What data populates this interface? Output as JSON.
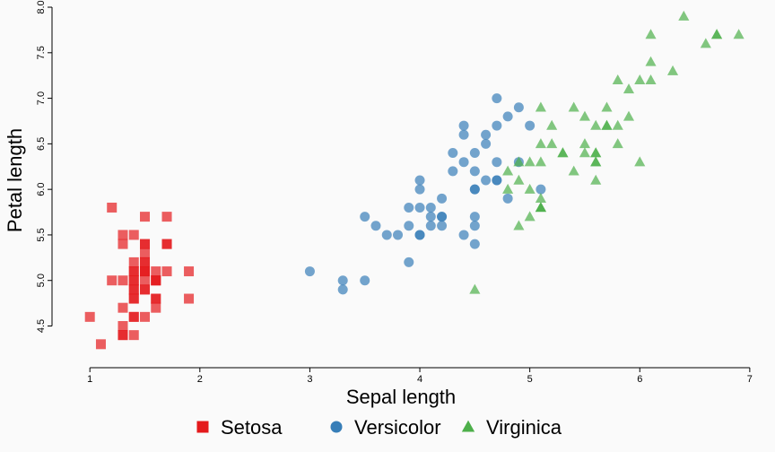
{
  "chart_data": {
    "type": "scatter",
    "xlabel": "Sepal length",
    "ylabel": "Petal length",
    "xlim": [
      0.77,
      7.05
    ],
    "ylim": [
      4.18,
      8.02
    ],
    "x_ticks": [
      1,
      2,
      3,
      4,
      5,
      6,
      7
    ],
    "y_ticks": [
      4.5,
      5.0,
      5.5,
      6.0,
      6.5,
      7.0,
      7.5,
      8.0
    ],
    "x_tick_labels": [
      "1",
      "2",
      "3",
      "4",
      "5",
      "6",
      "7"
    ],
    "y_tick_labels": [
      "4.5",
      "5.0",
      "5.5",
      "6.0",
      "6.5",
      "7.0",
      "7.5",
      "8.0"
    ],
    "grid": false,
    "legend_position": "bottom",
    "series": [
      {
        "name": "Setosa",
        "marker": "square",
        "color": "#e41a1c",
        "points": [
          [
            1.4,
            5.1
          ],
          [
            1.4,
            4.9
          ],
          [
            1.3,
            4.7
          ],
          [
            1.5,
            4.6
          ],
          [
            1.4,
            5.0
          ],
          [
            1.7,
            5.4
          ],
          [
            1.4,
            4.6
          ],
          [
            1.5,
            5.0
          ],
          [
            1.4,
            4.4
          ],
          [
            1.5,
            4.9
          ],
          [
            1.5,
            5.4
          ],
          [
            1.6,
            4.8
          ],
          [
            1.4,
            4.8
          ],
          [
            1.1,
            4.3
          ],
          [
            1.2,
            5.8
          ],
          [
            1.5,
            5.7
          ],
          [
            1.3,
            5.4
          ],
          [
            1.4,
            5.1
          ],
          [
            1.7,
            5.7
          ],
          [
            1.5,
            5.1
          ],
          [
            1.7,
            5.4
          ],
          [
            1.5,
            5.1
          ],
          [
            1.0,
            4.6
          ],
          [
            1.7,
            5.1
          ],
          [
            1.9,
            4.8
          ],
          [
            1.6,
            5.0
          ],
          [
            1.6,
            5.0
          ],
          [
            1.5,
            5.2
          ],
          [
            1.4,
            5.2
          ],
          [
            1.6,
            4.7
          ],
          [
            1.6,
            4.8
          ],
          [
            1.5,
            5.4
          ],
          [
            1.5,
            5.2
          ],
          [
            1.4,
            5.5
          ],
          [
            1.5,
            4.9
          ],
          [
            1.2,
            5.0
          ],
          [
            1.3,
            5.5
          ],
          [
            1.4,
            4.9
          ],
          [
            1.3,
            4.4
          ],
          [
            1.5,
            5.1
          ],
          [
            1.3,
            5.0
          ],
          [
            1.3,
            4.5
          ],
          [
            1.3,
            4.4
          ],
          [
            1.6,
            5.0
          ],
          [
            1.9,
            5.1
          ],
          [
            1.4,
            4.8
          ],
          [
            1.6,
            5.1
          ],
          [
            1.4,
            4.6
          ],
          [
            1.5,
            5.3
          ],
          [
            1.4,
            5.0
          ]
        ]
      },
      {
        "name": "Versicolor",
        "marker": "circle",
        "color": "#377eb8",
        "points": [
          [
            4.7,
            7.0
          ],
          [
            4.5,
            6.4
          ],
          [
            4.9,
            6.9
          ],
          [
            4.0,
            5.5
          ],
          [
            4.6,
            6.5
          ],
          [
            4.5,
            5.7
          ],
          [
            4.7,
            6.3
          ],
          [
            3.3,
            4.9
          ],
          [
            4.6,
            6.6
          ],
          [
            3.9,
            5.2
          ],
          [
            3.5,
            5.0
          ],
          [
            4.2,
            5.9
          ],
          [
            4.0,
            6.0
          ],
          [
            4.7,
            6.1
          ],
          [
            3.6,
            5.6
          ],
          [
            4.4,
            6.7
          ],
          [
            4.5,
            5.6
          ],
          [
            4.1,
            5.8
          ],
          [
            4.5,
            6.2
          ],
          [
            3.9,
            5.6
          ],
          [
            4.8,
            5.9
          ],
          [
            4.0,
            6.1
          ],
          [
            4.9,
            6.3
          ],
          [
            4.7,
            6.1
          ],
          [
            4.3,
            6.4
          ],
          [
            4.4,
            6.6
          ],
          [
            4.8,
            6.8
          ],
          [
            5.0,
            6.7
          ],
          [
            4.5,
            6.0
          ],
          [
            3.5,
            5.7
          ],
          [
            3.8,
            5.5
          ],
          [
            3.7,
            5.5
          ],
          [
            3.9,
            5.8
          ],
          [
            5.1,
            6.0
          ],
          [
            4.5,
            5.4
          ],
          [
            4.5,
            6.0
          ],
          [
            4.7,
            6.7
          ],
          [
            4.4,
            6.3
          ],
          [
            4.1,
            5.6
          ],
          [
            4.0,
            5.5
          ],
          [
            4.4,
            5.5
          ],
          [
            4.6,
            6.1
          ],
          [
            4.0,
            5.8
          ],
          [
            3.3,
            5.0
          ],
          [
            4.2,
            5.6
          ],
          [
            4.2,
            5.7
          ],
          [
            4.2,
            5.7
          ],
          [
            4.3,
            6.2
          ],
          [
            3.0,
            5.1
          ],
          [
            4.1,
            5.7
          ]
        ]
      },
      {
        "name": "Virginica",
        "marker": "triangle",
        "color": "#4daf4a",
        "points": [
          [
            6.0,
            6.3
          ],
          [
            5.1,
            5.8
          ],
          [
            5.9,
            7.1
          ],
          [
            5.6,
            6.3
          ],
          [
            5.8,
            6.5
          ],
          [
            6.6,
            7.6
          ],
          [
            4.5,
            4.9
          ],
          [
            6.3,
            7.3
          ],
          [
            5.8,
            6.7
          ],
          [
            6.1,
            7.2
          ],
          [
            5.1,
            6.5
          ],
          [
            5.3,
            6.4
          ],
          [
            5.5,
            6.8
          ],
          [
            5.0,
            5.7
          ],
          [
            5.1,
            5.8
          ],
          [
            5.3,
            6.4
          ],
          [
            5.5,
            6.5
          ],
          [
            6.7,
            7.7
          ],
          [
            6.9,
            7.7
          ],
          [
            5.0,
            6.0
          ],
          [
            5.7,
            6.9
          ],
          [
            4.9,
            5.6
          ],
          [
            6.7,
            7.7
          ],
          [
            4.9,
            6.3
          ],
          [
            5.7,
            6.7
          ],
          [
            6.0,
            7.2
          ],
          [
            4.8,
            6.2
          ],
          [
            4.9,
            6.1
          ],
          [
            5.6,
            6.4
          ],
          [
            5.8,
            7.2
          ],
          [
            6.1,
            7.4
          ],
          [
            6.4,
            7.9
          ],
          [
            5.6,
            6.4
          ],
          [
            5.1,
            6.3
          ],
          [
            5.6,
            6.1
          ],
          [
            6.1,
            7.7
          ],
          [
            5.6,
            6.3
          ],
          [
            5.5,
            6.4
          ],
          [
            4.8,
            6.0
          ],
          [
            5.4,
            6.9
          ],
          [
            5.6,
            6.7
          ],
          [
            5.1,
            6.9
          ],
          [
            5.1,
            5.8
          ],
          [
            5.9,
            6.8
          ],
          [
            5.7,
            6.7
          ],
          [
            5.2,
            6.7
          ],
          [
            5.0,
            6.3
          ],
          [
            5.2,
            6.5
          ],
          [
            5.4,
            6.2
          ],
          [
            5.1,
            5.9
          ]
        ]
      }
    ]
  }
}
